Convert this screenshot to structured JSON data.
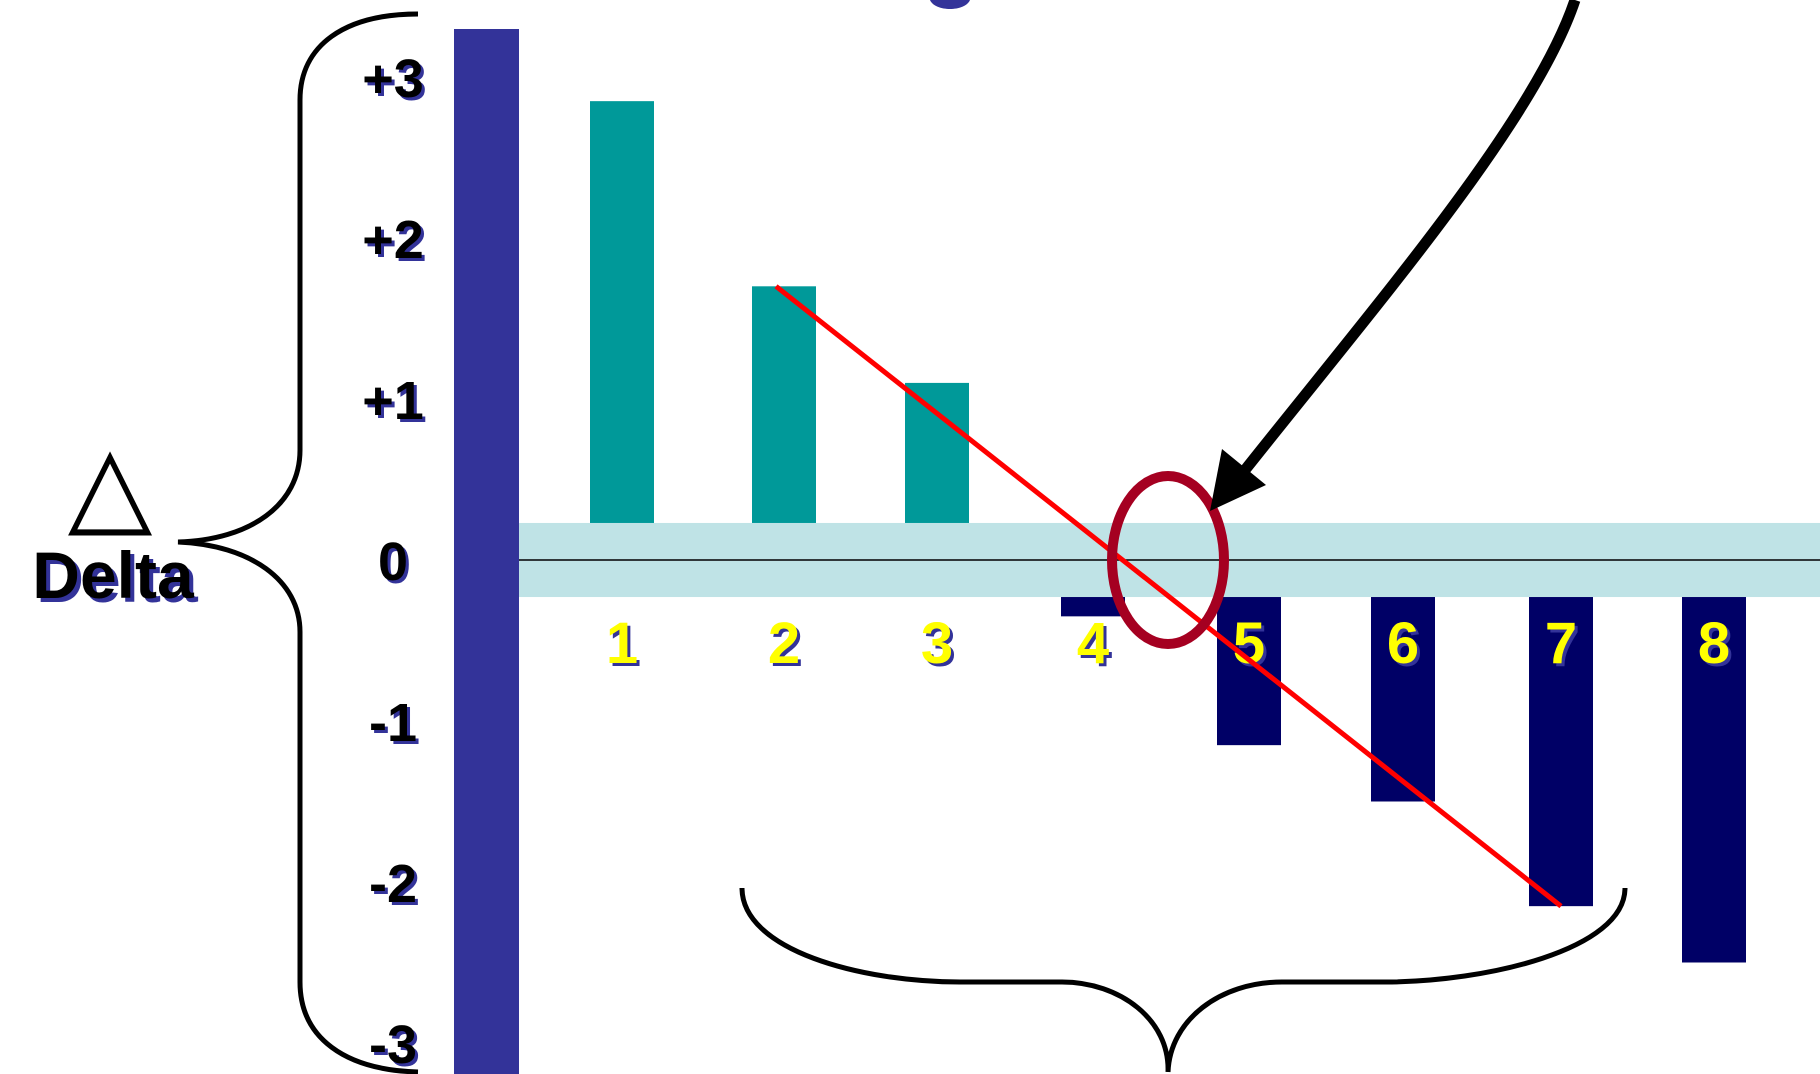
{
  "chart_data": {
    "type": "bar",
    "categories": [
      "1",
      "2",
      "3",
      "4",
      "5",
      "6",
      "7",
      "8"
    ],
    "values": [
      2.85,
      1.7,
      1.1,
      -0.35,
      -1.15,
      -1.5,
      -2.15,
      -2.5
    ],
    "ylim": [
      -3.5,
      3.5
    ],
    "y_ticks": [
      "+3",
      "+2",
      "+1",
      "0",
      "-1",
      "-2",
      "-3"
    ],
    "y_tick_values": [
      3,
      2,
      1,
      0,
      -1,
      -2,
      -3
    ],
    "ylabel_symbol": "△",
    "ylabel": "Delta",
    "trend_line": {
      "from": {
        "x": "2",
        "y": 1.7
      },
      "to": {
        "x": "7",
        "y": -2.15
      }
    },
    "highlight_circle_at": {
      "between": [
        "4",
        "5"
      ],
      "y": 0
    },
    "zero_band": {
      "from": -0.23,
      "to": 0.23
    },
    "grid": false,
    "legend": "none"
  },
  "colors": {
    "positive_bar": "#009999",
    "negative_bar": "#000066",
    "axis_bar": "#333399",
    "zero_band": "#bfe3e6",
    "category_label": "#ffff00",
    "trend_line": "#ff0000",
    "circle": "#a50021",
    "arrow": "#000000"
  }
}
